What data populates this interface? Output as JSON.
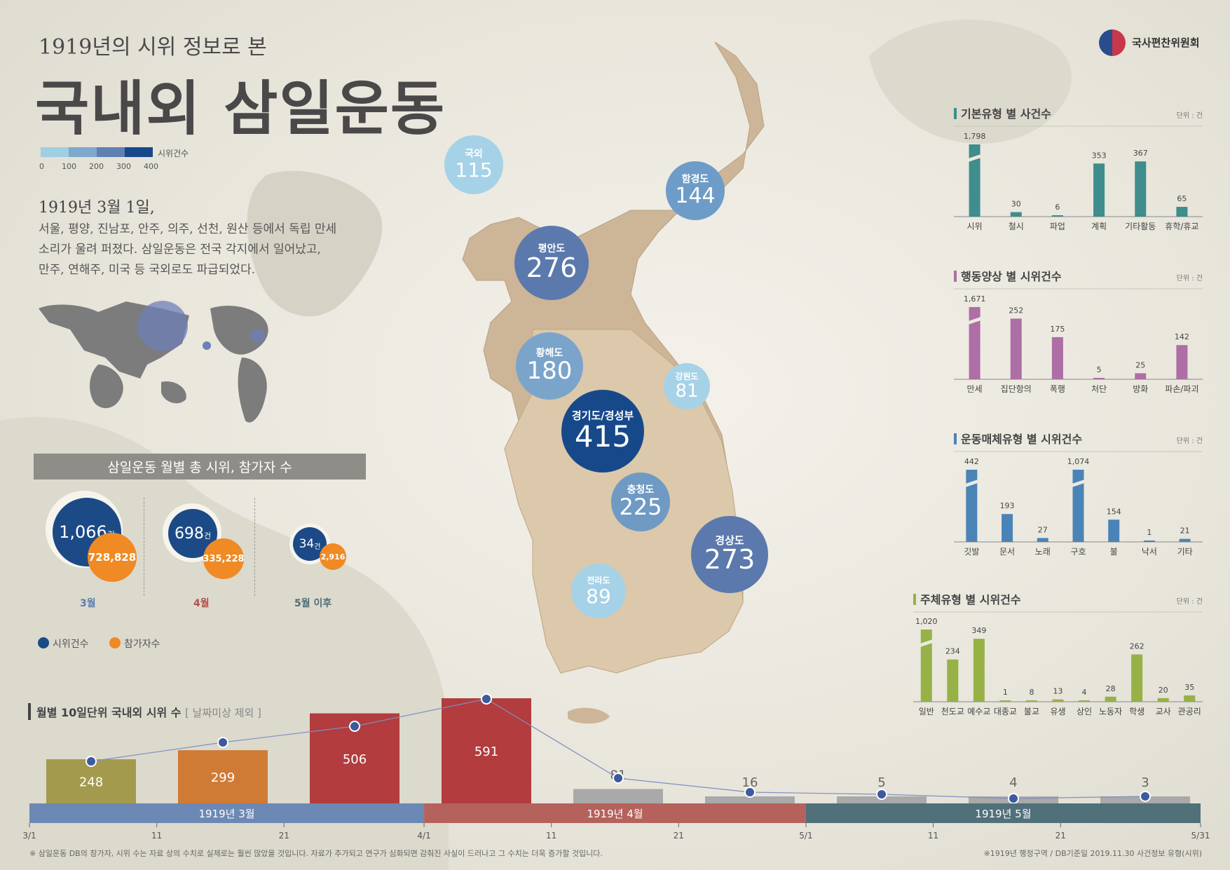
{
  "header": {
    "subtitle": "1919년의 시위 정보로 본",
    "title": "국내외 삼일운동",
    "org": "국사편찬위원회"
  },
  "legend_scale": {
    "label": "시위건수",
    "ticks": [
      "0",
      "100",
      "200",
      "300",
      "400"
    ],
    "colors": [
      "#9ecfe3",
      "#7fa9cc",
      "#5f80b3",
      "#17498a"
    ]
  },
  "intro": {
    "heading": "1919년 3월 1일,",
    "lines": [
      "서울, 평양, 진남포, 안주, 의주, 선천, 원산 등에서 독립 만세",
      "소리가 울려 퍼졌다. 삼일운동은 전국 각지에서 일어났고,",
      "만주, 연해주, 미국 등 국외로도 파급되었다."
    ]
  },
  "monthly": {
    "banner": "삼일운동 월별 총 시위, 참가자 수",
    "months": [
      {
        "label": "3월",
        "protests": "1,066",
        "unit": "건",
        "participants": "728,828",
        "label_color": "#5a7fb0"
      },
      {
        "label": "4월",
        "protests": "698",
        "unit": "건",
        "participants": "335,228",
        "label_color": "#b6504a"
      },
      {
        "label": "5월 이후",
        "protests": "34",
        "unit": "건",
        "participants": "2,916",
        "label_color": "#4d6f78"
      }
    ],
    "legend": {
      "protests": "시위건수",
      "participants": "참가자수"
    },
    "colors": {
      "protests": "#1c4a86",
      "participants": "#ef8a24"
    }
  },
  "regions": [
    {
      "name": "국외",
      "value": "115",
      "color": "#a6d2e7"
    },
    {
      "name": "함경도",
      "value": "144",
      "color": "#6e9cc8"
    },
    {
      "name": "평안도",
      "value": "276",
      "color": "#5b79ad"
    },
    {
      "name": "황해도",
      "value": "180",
      "color": "#7ba4cb"
    },
    {
      "name": "강원도",
      "value": "81",
      "color": "#a6d2e7"
    },
    {
      "name": "경기도/경성부",
      "value": "415",
      "color": "#17498a"
    },
    {
      "name": "충청도",
      "value": "225",
      "color": "#6f9ac4"
    },
    {
      "name": "경상도",
      "value": "273",
      "color": "#5b79ad"
    },
    {
      "name": "전라도",
      "value": "89",
      "color": "#a6d2e7"
    }
  ],
  "chart_data": [
    {
      "type": "bar",
      "title": "기본유형 별 사건수",
      "unit": "단위 : 건",
      "color": "#3f8d8c",
      "categories": [
        "시위",
        "철시",
        "파업",
        "계획",
        "기타활동",
        "휴학/휴교"
      ],
      "values": [
        1798,
        30,
        6,
        353,
        367,
        65
      ],
      "labels": [
        "1,798",
        "30",
        "6",
        "353",
        "367",
        "65"
      ],
      "broken": [
        true,
        false,
        false,
        false,
        false,
        false
      ]
    },
    {
      "type": "bar",
      "title": "행동양상 별 시위건수",
      "unit": "단위 : 건",
      "color": "#ae6ea6",
      "categories": [
        "만세",
        "집단항의",
        "폭행",
        "처단",
        "방화",
        "파손/파괴"
      ],
      "values": [
        1671,
        252,
        175,
        5,
        25,
        142
      ],
      "labels": [
        "1,671",
        "252",
        "175",
        "5",
        "25",
        "142"
      ],
      "broken": [
        true,
        false,
        false,
        false,
        false,
        false
      ]
    },
    {
      "type": "bar",
      "title": "운동매체유형 별 시위건수",
      "unit": "단위 : 건",
      "color": "#4a84b7",
      "categories": [
        "깃발",
        "문서",
        "노래",
        "구호",
        "불",
        "낙서",
        "기타"
      ],
      "values": [
        442,
        193,
        27,
        1074,
        154,
        1,
        21
      ],
      "labels": [
        "442",
        "193",
        "27",
        "1,074",
        "154",
        "1",
        "21"
      ],
      "broken": [
        true,
        false,
        false,
        true,
        false,
        false,
        false
      ]
    },
    {
      "type": "bar",
      "title": "주체유형 별 시위건수",
      "unit": "단위 : 건",
      "color": "#96b146",
      "categories": [
        "일반",
        "천도교",
        "예수교",
        "대종교",
        "불교",
        "유생",
        "상인",
        "노동자",
        "학생",
        "교사",
        "관공리"
      ],
      "values": [
        1020,
        234,
        349,
        1,
        8,
        13,
        4,
        28,
        262,
        20,
        35
      ],
      "labels": [
        "1,020",
        "234",
        "349",
        "1",
        "8",
        "13",
        "4",
        "28",
        "262",
        "20",
        "35"
      ],
      "broken": [
        true,
        false,
        false,
        false,
        false,
        false,
        false,
        false,
        false,
        false,
        false
      ]
    },
    {
      "type": "bar",
      "title": "월별 10일단위 국내외 시위 수",
      "note": "[ 날짜미상 제외 ]",
      "values": [
        248,
        299,
        506,
        591,
        81,
        16,
        5,
        4,
        3
      ],
      "labels": [
        "248",
        "299",
        "506",
        "591",
        "81",
        "16",
        "5",
        "4",
        "3"
      ],
      "colors": [
        "#a39a4e",
        "#cf7b35",
        "#b23c3e",
        "#b23c3e",
        "#a9a9a9",
        "#a9a9a9",
        "#a9a9a9",
        "#a9a9a9",
        "#a9a9a9"
      ],
      "months": [
        {
          "label": "1919년 3월",
          "color": "#6c88b4"
        },
        {
          "label": "1919년  4월",
          "color": "#b5625c"
        },
        {
          "label": "1919년 5월",
          "color": "#50707a"
        }
      ],
      "x_ticks": [
        "3/1",
        "11",
        "21",
        "4/1",
        "11",
        "21",
        "5/1",
        "11",
        "21",
        "5/31"
      ]
    }
  ],
  "footnote": "※ 삼일운동 DB의 참가자, 시위 수는 자료 상의 수치로 실제로는 훨씬 많았을 것입니다. 자료가 추가되고 연구가 심화되면 감춰진 사실이 드러나고 그 수치는 더욱 증가할 것입니다.",
  "footnote_right": "※1919년 행정구역 / DB기준일 2019.11.30 사건정보 유형(시위)"
}
